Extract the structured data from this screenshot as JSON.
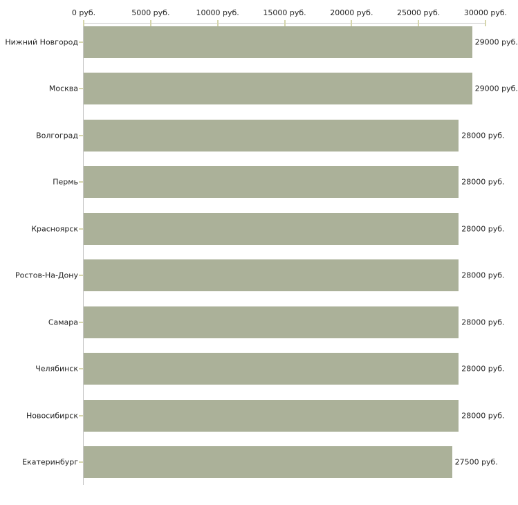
{
  "chart_data": {
    "type": "bar",
    "orientation": "horizontal",
    "title": "",
    "xlabel": "",
    "ylabel": "",
    "xlim": [
      0,
      30000
    ],
    "x_axis_position": "top",
    "grid": false,
    "legend": false,
    "x_ticks": [
      {
        "value": 0,
        "label": "0 руб."
      },
      {
        "value": 5000,
        "label": "5000 руб."
      },
      {
        "value": 10000,
        "label": "10000 руб."
      },
      {
        "value": 15000,
        "label": "15000 руб."
      },
      {
        "value": 20000,
        "label": "20000 руб."
      },
      {
        "value": 25000,
        "label": "25000 руб."
      },
      {
        "value": 30000,
        "label": "30000 руб."
      }
    ],
    "categories": [
      "Нижний Новгород",
      "Москва",
      "Волгоград",
      "Пермь",
      "Красноярск",
      "Ростов-На-Дону",
      "Самара",
      "Челябинск",
      "Новосибирск",
      "Екатеринбург"
    ],
    "values": [
      29000,
      29000,
      28000,
      28000,
      28000,
      28000,
      28000,
      28000,
      28000,
      27500
    ],
    "bar_value_labels": [
      "29000 руб.",
      "29000 руб.",
      "28000 руб.",
      "28000 руб.",
      "28000 руб.",
      "28000 руб.",
      "28000 руб.",
      "28000 руб.",
      "28000 руб.",
      "27500 руб."
    ],
    "colors": {
      "bar": "#abb199",
      "axis": "#c6c6c6",
      "tick": "#d6d6ac",
      "text": "#222222",
      "background": "#ffffff"
    }
  }
}
